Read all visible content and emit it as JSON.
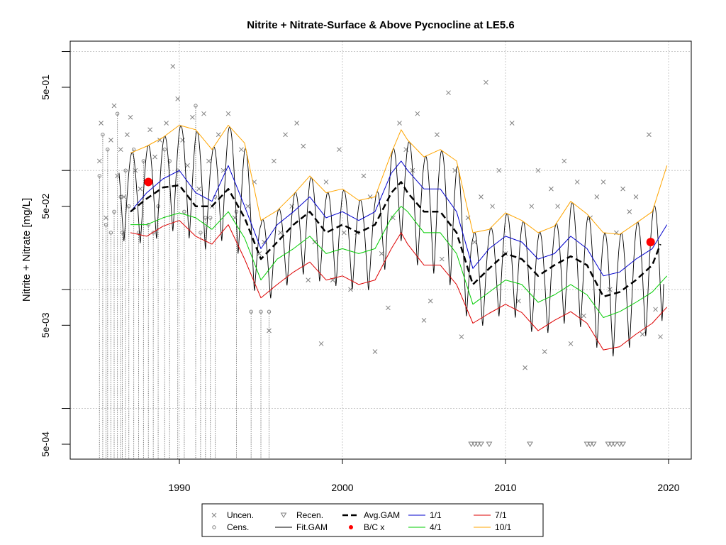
{
  "chart_data": {
    "type": "scatter",
    "title": "Nitrite + Nitrate-Surface & Above Pycnocline at LE5.6",
    "xlabel": "",
    "ylabel": "Nitrite + Nitrate [mg/L]",
    "y_scale": "log",
    "xlim": [
      1983.5,
      2021.3
    ],
    "ylim": [
      0.00035,
      1.2
    ],
    "x_ticks": [
      1990,
      2000,
      2010,
      2020
    ],
    "x_tick_labels": [
      "1990",
      "2000",
      "2010",
      "2020"
    ],
    "y_ticks": [
      0.0005,
      0.005,
      0.05,
      0.5
    ],
    "y_tick_labels": [
      "5e-04",
      "5e-03",
      "5e-02",
      "5e-01"
    ],
    "grid": true,
    "legend_position": "bottom",
    "legend": [
      {
        "key": "uncen",
        "label": "Uncen.",
        "symbol": "x",
        "color": "#808080"
      },
      {
        "key": "cens",
        "label": "Cens.",
        "symbol": "circle",
        "color": "#808080"
      },
      {
        "key": "recen",
        "label": "Recen.",
        "symbol": "triangle-down",
        "color": "#808080"
      },
      {
        "key": "fit",
        "label": "Fit.GAM",
        "symbol": "line",
        "color": "#000000"
      },
      {
        "key": "avg",
        "label": "Avg.GAM",
        "symbol": "dashed",
        "color": "#000000"
      },
      {
        "key": "bc",
        "label": "B/C x",
        "symbol": "dot",
        "color": "#ff0000"
      },
      {
        "key": "q1",
        "label": "1/1",
        "symbol": "line",
        "color": "#0000cc"
      },
      {
        "key": "q4",
        "label": "4/1",
        "symbol": "line",
        "color": "#00cc00"
      },
      {
        "key": "q7",
        "label": "7/1",
        "symbol": "line",
        "color": "#dd0000"
      },
      {
        "key": "q10",
        "label": "10/1",
        "symbol": "line",
        "color": "#ffa500"
      }
    ],
    "series": [
      {
        "name": "10/1",
        "color": "#ffa500",
        "x": [
          1987,
          1988,
          1989,
          1990,
          1991,
          1992,
          1993,
          1994,
          1995,
          1996,
          1997,
          1998,
          1999,
          2000,
          2001,
          2002,
          2003,
          2003.6,
          2004,
          2005,
          2006,
          2007,
          2008,
          2009,
          2010,
          2011,
          2012,
          2013,
          2014,
          2015,
          2016,
          2017,
          2018,
          2019,
          2019.9
        ],
        "y": [
          0.14,
          0.16,
          0.19,
          0.24,
          0.22,
          0.15,
          0.24,
          0.17,
          0.038,
          0.046,
          0.063,
          0.09,
          0.065,
          0.07,
          0.056,
          0.06,
          0.14,
          0.22,
          0.18,
          0.13,
          0.15,
          0.12,
          0.03,
          0.032,
          0.044,
          0.038,
          0.03,
          0.034,
          0.055,
          0.043,
          0.03,
          0.029,
          0.036,
          0.045,
          0.11
        ]
      },
      {
        "name": "1/1",
        "color": "#0000cc",
        "x": [
          1987,
          1988,
          1989,
          1990,
          1991,
          1992,
          1993,
          1994,
          1995,
          1996,
          1997,
          1998,
          1999,
          2000,
          2001,
          2002,
          2003,
          2003.6,
          2004,
          2005,
          2006,
          2007,
          2008,
          2009,
          2010,
          2011,
          2012,
          2013,
          2014,
          2015,
          2016,
          2017,
          2018,
          2019,
          2019.9
        ],
        "y": [
          0.045,
          0.065,
          0.085,
          0.1,
          0.065,
          0.055,
          0.11,
          0.05,
          0.022,
          0.035,
          0.045,
          0.06,
          0.04,
          0.045,
          0.038,
          0.045,
          0.095,
          0.12,
          0.1,
          0.07,
          0.07,
          0.045,
          0.015,
          0.022,
          0.028,
          0.025,
          0.018,
          0.02,
          0.028,
          0.022,
          0.013,
          0.014,
          0.018,
          0.022,
          0.035
        ]
      },
      {
        "name": "Avg.GAM",
        "color": "#000000",
        "x": [
          1987,
          1988,
          1989,
          1990,
          1991,
          1992,
          1993,
          1994,
          1995,
          1996,
          1997,
          1998,
          1999,
          2000,
          2001,
          2002,
          2003,
          2003.6,
          2004,
          2005,
          2006,
          2007,
          2008,
          2009,
          2010,
          2011,
          2012,
          2013,
          2014,
          2015,
          2016,
          2017,
          2018,
          2019,
          2019.5
        ],
        "y": [
          0.045,
          0.058,
          0.072,
          0.075,
          0.05,
          0.05,
          0.07,
          0.04,
          0.018,
          0.025,
          0.035,
          0.045,
          0.03,
          0.035,
          0.03,
          0.035,
          0.065,
          0.08,
          0.065,
          0.045,
          0.045,
          0.03,
          0.011,
          0.015,
          0.02,
          0.018,
          0.013,
          0.016,
          0.019,
          0.016,
          0.0087,
          0.0095,
          0.012,
          0.016,
          0.024
        ]
      },
      {
        "name": "4/1",
        "color": "#00cc00",
        "x": [
          1987,
          1988,
          1989,
          1990,
          1991,
          1992,
          1993,
          1994,
          1995,
          1996,
          1997,
          1998,
          1999,
          2000,
          2001,
          2002,
          2003,
          2003.6,
          2004,
          2005,
          2006,
          2007,
          2008,
          2009,
          2010,
          2011,
          2012,
          2013,
          2014,
          2015,
          2016,
          2017,
          2018,
          2019,
          2019.9
        ],
        "y": [
          0.035,
          0.035,
          0.04,
          0.044,
          0.04,
          0.032,
          0.045,
          0.027,
          0.012,
          0.018,
          0.022,
          0.028,
          0.02,
          0.022,
          0.02,
          0.022,
          0.04,
          0.05,
          0.045,
          0.03,
          0.03,
          0.02,
          0.0075,
          0.0095,
          0.012,
          0.011,
          0.0078,
          0.009,
          0.011,
          0.009,
          0.0058,
          0.0065,
          0.0078,
          0.0095,
          0.013
        ]
      },
      {
        "name": "7/1",
        "color": "#dd0000",
        "x": [
          1987,
          1988,
          1989,
          1990,
          1991,
          1992,
          1993,
          1994,
          1995,
          1996,
          1997,
          1998,
          1999,
          2000,
          2001,
          2002,
          2003,
          2003.6,
          2004,
          2005,
          2006,
          2007,
          2008,
          2009,
          2010,
          2011,
          2012,
          2013,
          2014,
          2015,
          2016,
          2017,
          2018,
          2019,
          2019.9
        ],
        "y": [
          0.03,
          0.028,
          0.034,
          0.038,
          0.028,
          0.024,
          0.035,
          0.018,
          0.0085,
          0.011,
          0.014,
          0.017,
          0.012,
          0.013,
          0.011,
          0.012,
          0.022,
          0.03,
          0.024,
          0.016,
          0.016,
          0.011,
          0.0052,
          0.0063,
          0.0075,
          0.0064,
          0.0045,
          0.0055,
          0.0065,
          0.0052,
          0.0031,
          0.0033,
          0.0042,
          0.0052,
          0.0071
        ]
      },
      {
        "name": "B/C x",
        "color": "#ff0000",
        "x": [
          1988.1,
          2018.9
        ],
        "y": [
          0.08,
          0.025
        ]
      },
      {
        "name": "Uncen.",
        "color": "#808080",
        "x": [
          1985.1,
          1985.2,
          1985.5,
          1985.8,
          1986.0,
          1986.2,
          1986.4,
          1986.6,
          1986.8,
          1987.0,
          1987.3,
          1987.6,
          1988.2,
          1988.5,
          1988.8,
          1989.2,
          1989.6,
          1989.9,
          1990.2,
          1990.5,
          1990.8,
          1991.2,
          1991.5,
          1991.8,
          1992.0,
          1992.4,
          1992.7,
          1993.0,
          1993.4,
          1993.8,
          1994.2,
          1994.6,
          1994.9,
          1995.2,
          1995.5,
          1995.8,
          1996.2,
          1996.5,
          1996.9,
          1997.2,
          1997.6,
          1997.9,
          1998.3,
          1998.7,
          1999.0,
          1999.4,
          1999.8,
          2000.1,
          2000.5,
          2000.9,
          2001.3,
          2001.7,
          2002.0,
          2002.4,
          2002.8,
          2003.1,
          2003.5,
          2003.9,
          2004.3,
          2004.6,
          2005.0,
          2005.4,
          2005.8,
          2006.1,
          2006.5,
          2006.9,
          2007.3,
          2007.7,
          2008.1,
          2008.5,
          2008.8,
          2009.2,
          2009.6,
          2010.0,
          2010.4,
          2010.8,
          2011.2,
          2011.6,
          2012.0,
          2012.4,
          2012.8,
          2013.2,
          2013.6,
          2014.0,
          2014.4,
          2014.8,
          2015.2,
          2015.6,
          2016.0,
          2016.4,
          2016.8,
          2017.2,
          2017.6,
          2018.0,
          2018.4,
          2018.8,
          2019.2,
          2019.5
        ],
        "y": [
          0.12,
          0.25,
          0.04,
          0.18,
          0.35,
          0.09,
          0.15,
          0.06,
          0.2,
          0.28,
          0.1,
          0.07,
          0.22,
          0.13,
          0.18,
          0.25,
          0.75,
          0.4,
          0.18,
          0.11,
          0.28,
          0.07,
          0.3,
          0.12,
          0.05,
          0.2,
          0.1,
          0.3,
          0.04,
          0.15,
          0.05,
          0.08,
          0.02,
          0.025,
          0.0045,
          0.12,
          0.03,
          0.2,
          0.05,
          0.25,
          0.16,
          0.012,
          0.025,
          0.0035,
          0.08,
          0.012,
          0.15,
          0.03,
          0.01,
          0.03,
          0.09,
          0.06,
          0.003,
          0.02,
          0.007,
          0.04,
          0.25,
          0.15,
          0.1,
          0.3,
          0.0055,
          0.008,
          0.2,
          0.018,
          0.45,
          0.1,
          0.004,
          0.04,
          0.025,
          0.06,
          0.55,
          0.05,
          0.1,
          0.02,
          0.25,
          0.008,
          0.0022,
          0.05,
          0.1,
          0.003,
          0.07,
          0.05,
          0.12,
          0.0035,
          0.08,
          0.006,
          0.04,
          0.06,
          0.08,
          0.01,
          0.03,
          0.07,
          0.045,
          0.06,
          0.0042,
          0.2,
          0.0068,
          0.004
        ]
      },
      {
        "name": "Cens.",
        "color": "#808080",
        "x": [
          1985.1,
          1985.3,
          1985.5,
          1985.6,
          1985.8,
          1986.0,
          1986.2,
          1986.4,
          1986.5,
          1986.7,
          1986.9,
          1987.2,
          1987.5,
          1987.8,
          1988.1,
          1988.4,
          1988.7,
          1989.1,
          1989.4,
          1989.9,
          1990.3,
          1991.0,
          1991.3,
          1991.6,
          1991.9,
          1992.2,
          1993.5,
          1994.4,
          1995.0,
          1995.5
        ],
        "y": [
          0.09,
          0.2,
          0.035,
          0.15,
          0.03,
          0.045,
          0.3,
          0.06,
          0.03,
          0.1,
          0.05,
          0.15,
          0.03,
          0.12,
          0.035,
          0.03,
          0.05,
          0.15,
          0.12,
          0.1,
          0.045,
          0.35,
          0.03,
          0.04,
          0.04,
          0.06,
          0.045,
          0.0065,
          0.0065,
          0.0065
        ]
      },
      {
        "name": "Recen.",
        "color": "#808080",
        "x": [
          2007.9,
          2008.1,
          2008.3,
          2008.5,
          2009.0,
          2011.5,
          2015.0,
          2015.2,
          2015.4,
          2016.3,
          2016.5,
          2016.7,
          2017.0,
          2017.2
        ],
        "y": [
          0.0005,
          0.0005,
          0.0005,
          0.0005,
          0.0005,
          0.0005,
          0.0005,
          0.0005,
          0.0005,
          0.0005,
          0.0005,
          0.0005,
          0.0005,
          0.0005
        ]
      }
    ]
  }
}
